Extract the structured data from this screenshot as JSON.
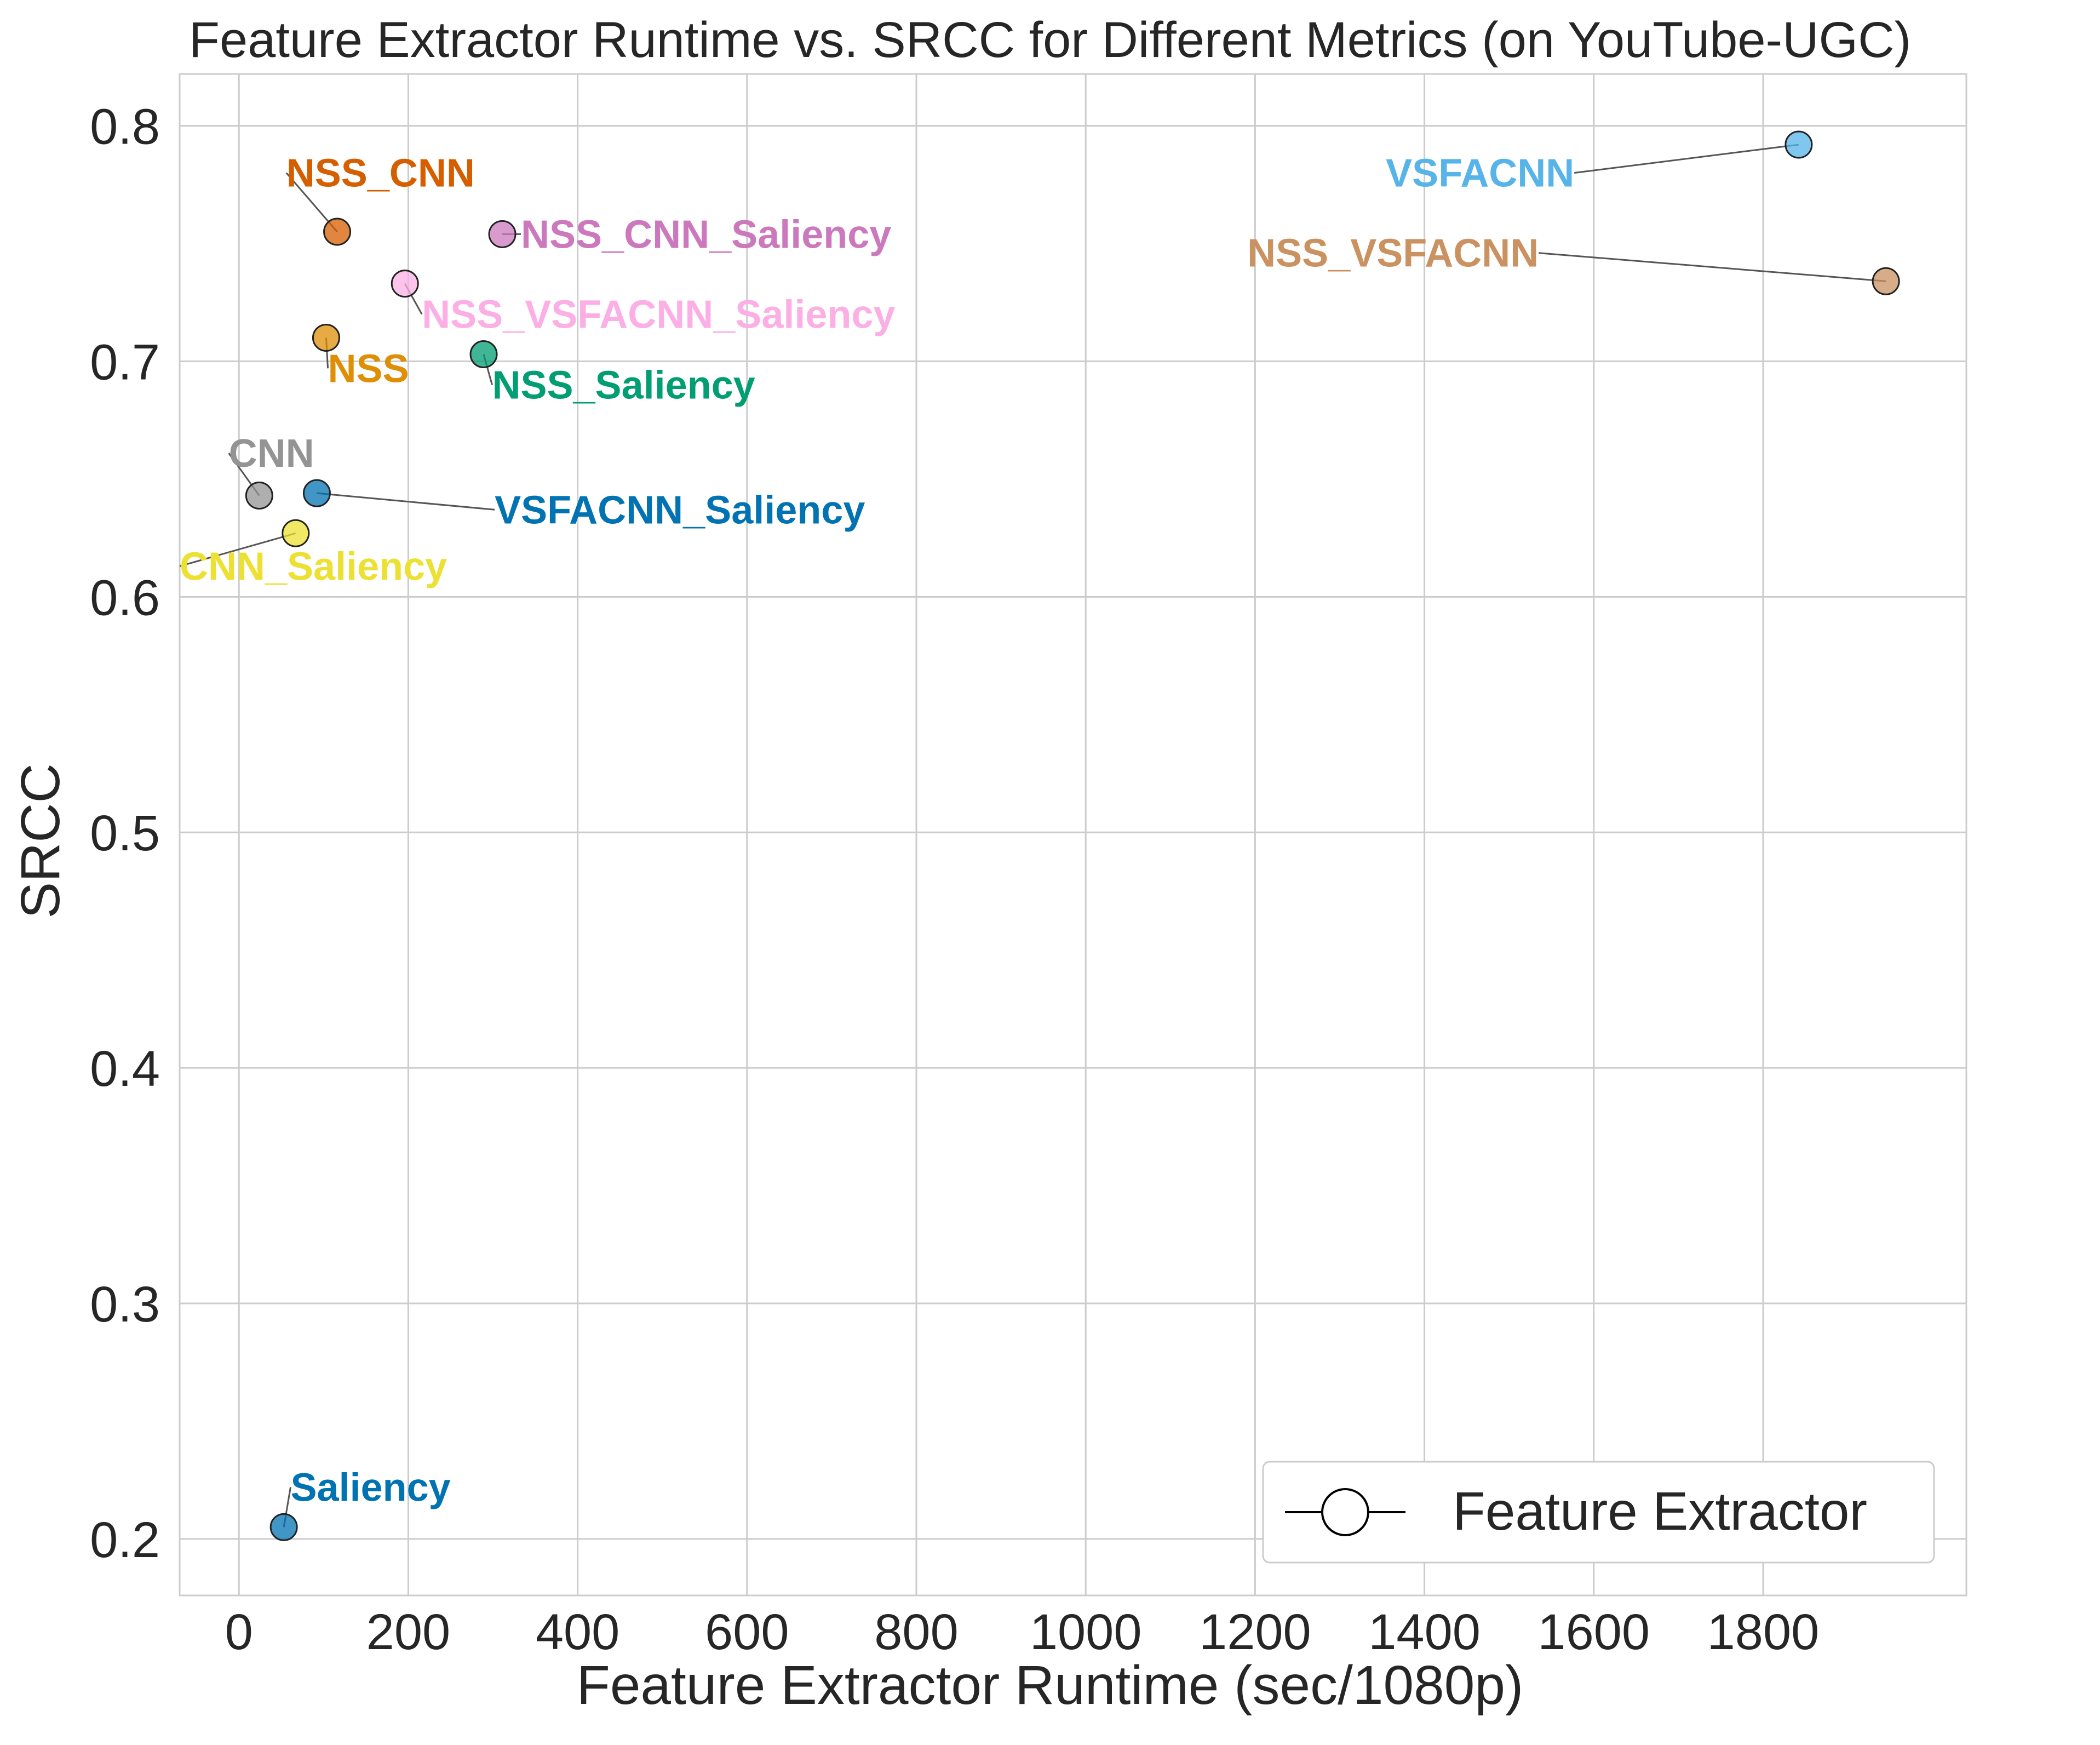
{
  "chart_data": {
    "type": "scatter",
    "title": "Feature Extractor Runtime vs. SRCC for Different Metrics (on YouTube-UGC)",
    "xlabel": "Feature Extractor Runtime (sec/1080p)",
    "ylabel": "SRCC",
    "xlim": [
      -70,
      2040
    ],
    "ylim": [
      0.176,
      0.822
    ],
    "xticks": [
      0,
      200,
      400,
      600,
      800,
      1000,
      1200,
      1400,
      1600,
      1800
    ],
    "xtick_labels": [
      "0",
      "200",
      "400",
      "600",
      "800",
      "1000",
      "1200",
      "1400",
      "1600",
      "1800"
    ],
    "yticks": [
      0.2,
      0.3,
      0.4,
      0.5,
      0.6,
      0.7,
      0.8
    ],
    "ytick_labels": [
      "0.2",
      "0.3",
      "0.4",
      "0.5",
      "0.6",
      "0.7",
      "0.8"
    ],
    "grid": true,
    "legend": {
      "placement": "lower-right",
      "entries": [
        {
          "label": "Feature Extractor",
          "marker": "circle-line"
        }
      ]
    },
    "points": [
      {
        "name": "VSFACNN",
        "x": 1842,
        "y": 0.792,
        "color": "#56b4e9",
        "label_dx": -265,
        "label_dy": -0.012
      },
      {
        "name": "NSS_VSFACNN",
        "x": 1945,
        "y": 0.734,
        "color": "#ca9161",
        "label_dx": -410,
        "label_dy": 0.012
      },
      {
        "name": "NSS_CNN",
        "x": 116,
        "y": 0.755,
        "color": "#d55e00",
        "label_dx": -60,
        "label_dy": 0.025
      },
      {
        "name": "NSS_CNN_Saliency",
        "x": 311,
        "y": 0.754,
        "color": "#cc78bc",
        "label_dx": 22,
        "label_dy": 0.0
      },
      {
        "name": "NSS_VSFACNN_Saliency",
        "x": 196,
        "y": 0.733,
        "color": "#fbafe4",
        "label_dx": 20,
        "label_dy": -0.013
      },
      {
        "name": "NSS",
        "x": 103,
        "y": 0.71,
        "color": "#de8f05",
        "label_dx": 2,
        "label_dy": -0.013
      },
      {
        "name": "NSS_Saliency",
        "x": 289,
        "y": 0.703,
        "color": "#029e73",
        "label_dx": 10,
        "label_dy": -0.013
      },
      {
        "name": "CNN",
        "x": 24,
        "y": 0.643,
        "color": "#949494",
        "label_dx": -36,
        "label_dy": 0.018
      },
      {
        "name": "VSFACNN_Saliency",
        "x": 92,
        "y": 0.644,
        "color": "#0173b2",
        "label_dx": 210,
        "label_dy": -0.007
      },
      {
        "name": "CNN_Saliency",
        "x": 67,
        "y": 0.627,
        "color": "#ece133",
        "label_dx": -137,
        "label_dy": -0.014
      },
      {
        "name": "Saliency",
        "x": 53,
        "y": 0.205,
        "color": "#0173b2",
        "label_dx": 8,
        "label_dy": 0.017
      }
    ]
  }
}
